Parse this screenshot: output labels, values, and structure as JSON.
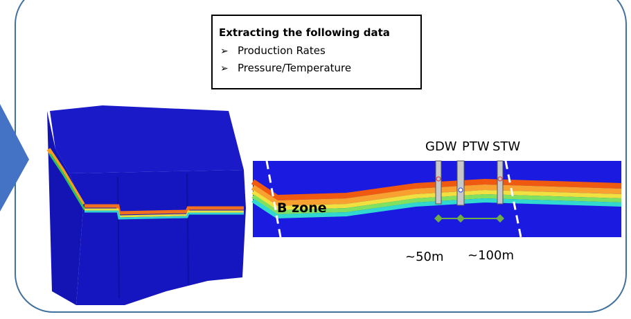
{
  "info_box": {
    "title": "Extracting the following data",
    "items": [
      "Production Rates",
      "Pressure/Temperature"
    ]
  },
  "wells": [
    "GDW",
    "PTW",
    "STW"
  ],
  "zone_label": "B zone",
  "distances": [
    "~50m",
    "~100m"
  ]
}
